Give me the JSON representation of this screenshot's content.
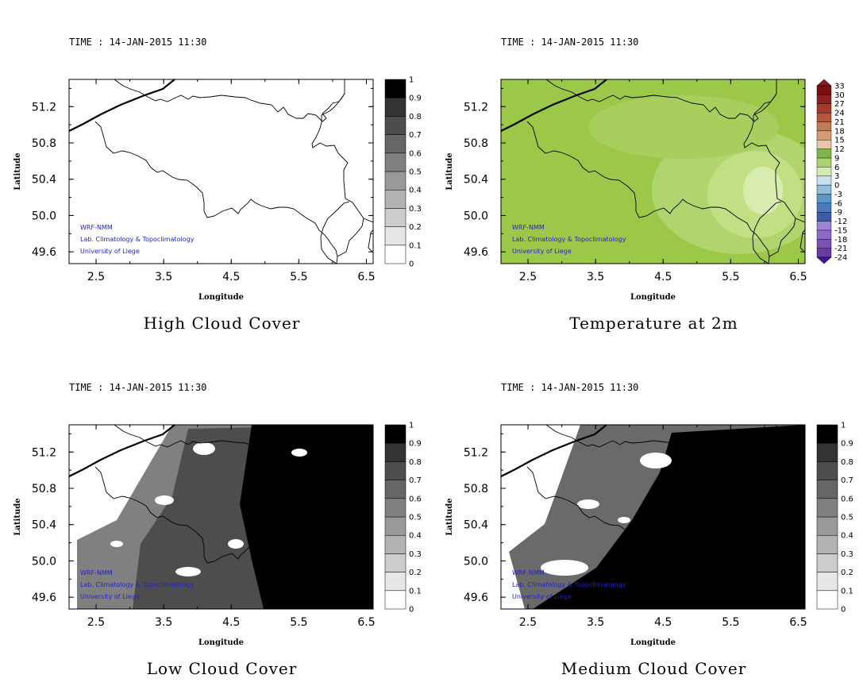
{
  "time_text": "TIME : 14-JAN-2015 11:30",
  "credits": [
    "WRF-NMM",
    "Lab. Climatology & Topoclimatology",
    "University of Liege"
  ],
  "colors": {
    "credit_text": "#2222cc",
    "frame": "#000000",
    "temp_field": "#9cc84a",
    "temp_light": "#c2df84"
  },
  "chart_data": [
    {
      "type": "heatmap",
      "title": "High Cloud Cover",
      "time": "TIME : 14-JAN-2015 11:30",
      "xlabel": "Longitude",
      "ylabel": "Latitude",
      "xlim": [
        2.1,
        6.6
      ],
      "ylim": [
        49.47,
        51.5
      ],
      "xticks": [
        "2.5",
        "3.5",
        "4.5",
        "5.5",
        "6.5"
      ],
      "yticks": [
        "49.6",
        "50.0",
        "50.4",
        "50.8",
        "51.2"
      ],
      "colorbar_levels": [
        "0",
        "0.1",
        "0.2",
        "0.3",
        "0.4",
        "0.5",
        "0.6",
        "0.7",
        "0.8",
        "0.9",
        "1"
      ],
      "field_summary": "0 everywhere (clear sky)",
      "field_value": 0
    },
    {
      "type": "heatmap",
      "title": "Temperature at 2m",
      "time": "TIME : 14-JAN-2015 11:30",
      "xlabel": "Longitude",
      "ylabel": "Latitude",
      "xlim": [
        2.1,
        6.6
      ],
      "ylim": [
        49.47,
        51.5
      ],
      "xticks": [
        "2.5",
        "3.5",
        "4.5",
        "5.5",
        "6.5"
      ],
      "yticks": [
        "49.6",
        "50.0",
        "50.4",
        "50.8",
        "51.2"
      ],
      "colorbar_levels": [
        "-24",
        "-21",
        "-18",
        "-15",
        "-12",
        "-9",
        "-6",
        "-3",
        "0",
        "3",
        "6",
        "9",
        "12",
        "15",
        "18",
        "21",
        "24",
        "27",
        "30",
        "33"
      ],
      "field_summary": "mostly 6 to 9, down to about 3 in the south-east",
      "field_range": [
        3,
        9
      ]
    },
    {
      "type": "heatmap",
      "title": "Low Cloud Cover",
      "time": "TIME : 14-JAN-2015 11:30",
      "xlabel": "Longitude",
      "ylabel": "Latitude",
      "xlim": [
        2.1,
        6.6
      ],
      "ylim": [
        49.47,
        51.5
      ],
      "xticks": [
        "2.5",
        "3.5",
        "4.5",
        "5.5",
        "6.5"
      ],
      "yticks": [
        "49.6",
        "50.0",
        "50.4",
        "50.8",
        "51.2"
      ],
      "colorbar_levels": [
        "0",
        "0.1",
        "0.2",
        "0.3",
        "0.4",
        "0.5",
        "0.6",
        "0.7",
        "0.8",
        "0.9",
        "1"
      ],
      "field_summary": "1 in the east, 0.6-0.9 in the centre, clearer patches in the west",
      "field_range": [
        0,
        1
      ]
    },
    {
      "type": "heatmap",
      "title": "Medium Cloud Cover",
      "time": "TIME : 14-JAN-2015 11:30",
      "xlabel": "Longitude",
      "ylabel": "Latitude",
      "xlim": [
        2.1,
        6.6
      ],
      "ylim": [
        49.47,
        51.5
      ],
      "xticks": [
        "2.5",
        "3.5",
        "4.5",
        "5.5",
        "6.5"
      ],
      "yticks": [
        "49.6",
        "50.0",
        "50.4",
        "50.8",
        "51.2"
      ],
      "colorbar_levels": [
        "0",
        "0.1",
        "0.2",
        "0.3",
        "0.4",
        "0.5",
        "0.6",
        "0.7",
        "0.8",
        "0.9",
        "1"
      ],
      "field_summary": "1 east of about 4.5, 0.6-0.8 in the west, clear patches near 5",
      "field_range": [
        0,
        1
      ]
    }
  ]
}
